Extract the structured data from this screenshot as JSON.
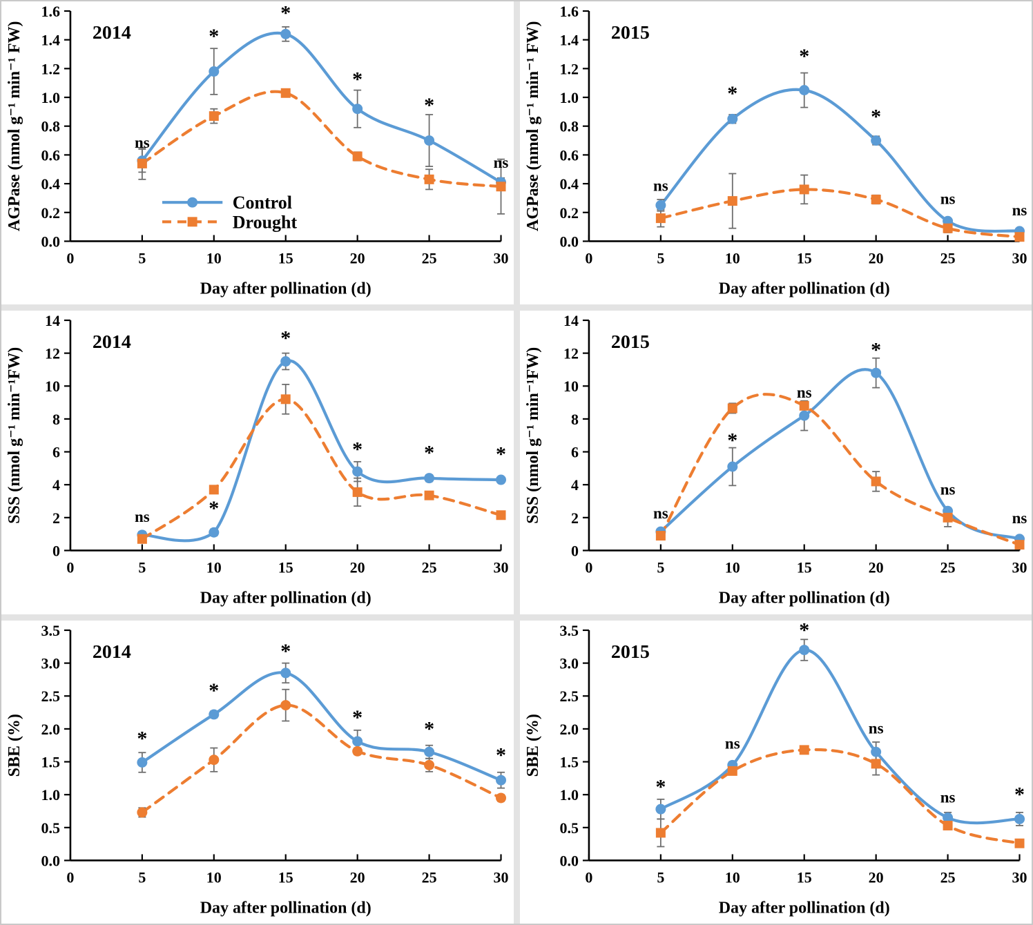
{
  "style": {
    "control_color": "#5B9BD5",
    "drought_color": "#ED7D31",
    "error_bar_color": "#6e6e6e",
    "axis_color": "#000000",
    "panel_background": "#ffffff",
    "gutter_color": "#e3e3e3"
  },
  "legend": {
    "labels": [
      "Control",
      "Drought"
    ]
  },
  "chart_data": [
    {
      "type": "line",
      "year": "2014",
      "ylabel": "AGPase  (nmol g⁻¹ min⁻¹ FW)",
      "xlabel": "Day after pollination (d)",
      "ylim": [
        0,
        1.6
      ],
      "xlim": [
        0,
        30
      ],
      "ytick_values": [
        0,
        0.2,
        0.4,
        0.6,
        0.8,
        1.0,
        1.2,
        1.4,
        1.6
      ],
      "ytick_labels": [
        "0.0",
        "0.2",
        "0.4",
        "0.6",
        "0.8",
        "1.0",
        "1.2",
        "1.4",
        "1.6"
      ],
      "xtick_values": [
        0,
        5,
        10,
        15,
        20,
        25,
        30
      ],
      "xtick_labels": [
        "0",
        "5",
        "10",
        "15",
        "20",
        "25",
        "30"
      ],
      "x": [
        5,
        10,
        15,
        20,
        25,
        30
      ],
      "series": [
        {
          "name": "Control",
          "color": "#5B9BD5",
          "marker": "circle",
          "dash": false,
          "values": [
            0.56,
            1.18,
            1.44,
            0.92,
            0.7,
            0.41
          ],
          "err": [
            0.08,
            0.16,
            0.05,
            0.13,
            0.18,
            0.03
          ]
        },
        {
          "name": "Drought",
          "color": "#ED7D31",
          "marker": "square",
          "dash": true,
          "values": [
            0.54,
            0.87,
            1.03,
            0.59,
            0.43,
            0.38
          ],
          "err": [
            0.11,
            0.05,
            0.02,
            0.03,
            0.07,
            0.19
          ]
        }
      ],
      "sig": [
        {
          "x": 5,
          "y": 0.65,
          "label": "ns"
        },
        {
          "x": 10,
          "y": 1.38,
          "label": "*"
        },
        {
          "x": 15,
          "y": 1.54,
          "label": "*"
        },
        {
          "x": 20,
          "y": 1.08,
          "label": "*"
        },
        {
          "x": 25,
          "y": 0.9,
          "label": "*"
        },
        {
          "x": 30,
          "y": 0.51,
          "label": "ns"
        }
      ],
      "legend": {
        "x1": 6.4,
        "x2": 10.6,
        "label_x": 11.3,
        "row_y": [
          0.27,
          0.135
        ]
      }
    },
    {
      "type": "line",
      "year": "2015",
      "ylabel": "AGPase  (nmol g⁻¹ min⁻¹ FW)",
      "xlabel": "Day after pollination (d)",
      "ylim": [
        0,
        1.6
      ],
      "xlim": [
        0,
        30
      ],
      "ytick_values": [
        0,
        0.2,
        0.4,
        0.6,
        0.8,
        1.0,
        1.2,
        1.4,
        1.6
      ],
      "ytick_labels": [
        "0.0",
        "0.2",
        "0.4",
        "0.6",
        "0.8",
        "1.0",
        "1.2",
        "1.4",
        "1.6"
      ],
      "xtick_values": [
        0,
        5,
        10,
        15,
        20,
        25,
        30
      ],
      "xtick_labels": [
        "0",
        "5",
        "10",
        "15",
        "20",
        "25",
        "30"
      ],
      "x": [
        5,
        10,
        15,
        20,
        25,
        30
      ],
      "series": [
        {
          "name": "Control",
          "color": "#5B9BD5",
          "marker": "circle",
          "dash": false,
          "values": [
            0.25,
            0.85,
            1.05,
            0.7,
            0.14,
            0.07
          ],
          "err": [
            0.04,
            0.03,
            0.12,
            0.03,
            0.02,
            0.02
          ]
        },
        {
          "name": "Drought",
          "color": "#ED7D31",
          "marker": "square",
          "dash": true,
          "values": [
            0.16,
            0.28,
            0.36,
            0.29,
            0.09,
            0.03
          ],
          "err": [
            0.06,
            0.19,
            0.1,
            0.03,
            0.03,
            0.02
          ]
        }
      ],
      "sig": [
        {
          "x": 5,
          "y": 0.35,
          "label": "ns"
        },
        {
          "x": 10,
          "y": 0.98,
          "label": "*"
        },
        {
          "x": 15,
          "y": 1.24,
          "label": "*"
        },
        {
          "x": 20,
          "y": 0.82,
          "label": "*"
        },
        {
          "x": 25,
          "y": 0.26,
          "label": "ns"
        },
        {
          "x": 30,
          "y": 0.18,
          "label": "ns"
        }
      ],
      "legend": null
    },
    {
      "type": "line",
      "year": "2014",
      "ylabel": "SSS  (nmol g⁻¹ min⁻¹FW)",
      "xlabel": "Day after pollination (d)",
      "ylim": [
        0,
        14
      ],
      "xlim": [
        0,
        30
      ],
      "ytick_values": [
        0,
        2,
        4,
        6,
        8,
        10,
        12,
        14
      ],
      "ytick_labels": [
        "0",
        "2",
        "4",
        "6",
        "8",
        "10",
        "12",
        "14"
      ],
      "xtick_values": [
        0,
        5,
        10,
        15,
        20,
        25,
        30
      ],
      "xtick_labels": [
        "0",
        "5",
        "10",
        "15",
        "20",
        "25",
        "30"
      ],
      "x": [
        5,
        10,
        15,
        20,
        25,
        30
      ],
      "series": [
        {
          "name": "Control",
          "color": "#5B9BD5",
          "marker": "circle",
          "dash": false,
          "values": [
            0.95,
            1.1,
            11.5,
            4.8,
            4.4,
            4.3
          ],
          "err": [
            0.2,
            0.2,
            0.5,
            0.6,
            0.2,
            0.15
          ]
        },
        {
          "name": "Drought",
          "color": "#ED7D31",
          "marker": "square",
          "dash": true,
          "values": [
            0.7,
            3.7,
            9.2,
            3.55,
            3.35,
            2.15
          ],
          "err": [
            0.15,
            0.2,
            0.9,
            0.85,
            0.15,
            0.1
          ]
        }
      ],
      "sig": [
        {
          "x": 5,
          "y": 1.75,
          "label": "ns"
        },
        {
          "x": 10,
          "y": 2.15,
          "label": "*"
        },
        {
          "x": 15,
          "y": 12.5,
          "label": "*"
        },
        {
          "x": 20,
          "y": 5.75,
          "label": "*"
        },
        {
          "x": 25,
          "y": 5.55,
          "label": "*"
        },
        {
          "x": 30,
          "y": 5.45,
          "label": "*"
        }
      ],
      "legend": null
    },
    {
      "type": "line",
      "year": "2015",
      "ylabel": "SSS  (nmol g⁻¹ min⁻¹FW)",
      "xlabel": "Day after pollination (d)",
      "ylim": [
        0,
        14
      ],
      "xlim": [
        0,
        30
      ],
      "ytick_values": [
        0,
        2,
        4,
        6,
        8,
        10,
        12,
        14
      ],
      "ytick_labels": [
        "0",
        "2",
        "4",
        "6",
        "8",
        "10",
        "12",
        "14"
      ],
      "xtick_values": [
        0,
        5,
        10,
        15,
        20,
        25,
        30
      ],
      "xtick_labels": [
        "0",
        "5",
        "10",
        "15",
        "20",
        "25",
        "30"
      ],
      "x": [
        5,
        10,
        15,
        20,
        25,
        30
      ],
      "series": [
        {
          "name": "Control",
          "color": "#5B9BD5",
          "marker": "circle",
          "dash": false,
          "values": [
            1.15,
            5.1,
            8.2,
            10.8,
            2.4,
            0.7
          ],
          "err": [
            0.15,
            1.15,
            0.9,
            0.9,
            0.2,
            0.1
          ]
        },
        {
          "name": "Drought",
          "color": "#ED7D31",
          "marker": "square",
          "dash": true,
          "values": [
            0.9,
            8.65,
            8.8,
            4.2,
            2.0,
            0.35
          ],
          "err": [
            0.15,
            0.3,
            0.2,
            0.6,
            0.55,
            0.1
          ]
        }
      ],
      "sig": [
        {
          "x": 5,
          "y": 1.95,
          "label": "ns"
        },
        {
          "x": 10,
          "y": 6.3,
          "label": "*"
        },
        {
          "x": 15,
          "y": 9.3,
          "label": "ns"
        },
        {
          "x": 20,
          "y": 11.8,
          "label": "*"
        },
        {
          "x": 25,
          "y": 3.4,
          "label": "ns"
        },
        {
          "x": 30,
          "y": 1.65,
          "label": "ns"
        }
      ],
      "legend": null
    },
    {
      "type": "line",
      "year": "2014",
      "ylabel": "SBE (%)",
      "xlabel": "Day after pollination (d)",
      "ylim": [
        0,
        3.5
      ],
      "xlim": [
        0,
        30
      ],
      "ytick_values": [
        0,
        0.5,
        1.0,
        1.5,
        2.0,
        2.5,
        3.0,
        3.5
      ],
      "ytick_labels": [
        "0.0",
        "0.5",
        "1.0",
        "1.5",
        "2.0",
        "2.5",
        "3.0",
        "3.5"
      ],
      "xtick_values": [
        0,
        5,
        10,
        15,
        20,
        25,
        30
      ],
      "xtick_labels": [
        "0",
        "5",
        "10",
        "15",
        "20",
        "25",
        "30"
      ],
      "x": [
        5,
        10,
        15,
        20,
        25,
        30
      ],
      "series": [
        {
          "name": "Control",
          "color": "#5B9BD5",
          "marker": "circle",
          "dash": false,
          "values": [
            1.49,
            2.22,
            2.85,
            1.81,
            1.65,
            1.22
          ],
          "err": [
            0.15,
            0.05,
            0.15,
            0.17,
            0.1,
            0.12
          ]
        },
        {
          "name": "Drought",
          "color": "#ED7D31",
          "marker": "circle",
          "dash": true,
          "values": [
            0.73,
            1.53,
            2.36,
            1.66,
            1.45,
            0.95
          ],
          "err": [
            0.07,
            0.18,
            0.24,
            0.05,
            0.1,
            0.05
          ]
        }
      ],
      "sig": [
        {
          "x": 5,
          "y": 1.75,
          "label": "*"
        },
        {
          "x": 10,
          "y": 2.48,
          "label": "*"
        },
        {
          "x": 15,
          "y": 3.08,
          "label": "*"
        },
        {
          "x": 20,
          "y": 2.07,
          "label": "*"
        },
        {
          "x": 25,
          "y": 1.9,
          "label": "*"
        },
        {
          "x": 30,
          "y": 1.5,
          "label": "*"
        }
      ],
      "legend": null
    },
    {
      "type": "line",
      "year": "2015",
      "ylabel": "SBE (%)",
      "xlabel": "Day after pollination (d)",
      "ylim": [
        0,
        3.5
      ],
      "xlim": [
        0,
        30
      ],
      "ytick_values": [
        0,
        0.5,
        1.0,
        1.5,
        2.0,
        2.5,
        3.0,
        3.5
      ],
      "ytick_labels": [
        "0.0",
        "0.5",
        "1.0",
        "1.5",
        "2.0",
        "2.5",
        "3.0",
        "3.5"
      ],
      "xtick_values": [
        0,
        5,
        10,
        15,
        20,
        25,
        30
      ],
      "xtick_labels": [
        "0",
        "5",
        "10",
        "15",
        "20",
        "25",
        "30"
      ],
      "x": [
        5,
        10,
        15,
        20,
        25,
        30
      ],
      "series": [
        {
          "name": "Control",
          "color": "#5B9BD5",
          "marker": "circle",
          "dash": false,
          "values": [
            0.78,
            1.45,
            3.2,
            1.65,
            0.65,
            0.63
          ],
          "err": [
            0.15,
            0.05,
            0.16,
            0.15,
            0.08,
            0.1
          ]
        },
        {
          "name": "Drought",
          "color": "#ED7D31",
          "marker": "square",
          "dash": true,
          "values": [
            0.42,
            1.36,
            1.68,
            1.47,
            0.53,
            0.26
          ],
          "err": [
            0.21,
            0.05,
            0.05,
            0.17,
            0.06,
            0.05
          ]
        }
      ],
      "sig": [
        {
          "x": 5,
          "y": 1.02,
          "label": "*"
        },
        {
          "x": 10,
          "y": 1.7,
          "label": "ns"
        },
        {
          "x": 15,
          "y": 3.4,
          "label": "*"
        },
        {
          "x": 20,
          "y": 1.93,
          "label": "ns"
        },
        {
          "x": 25,
          "y": 0.88,
          "label": "ns"
        },
        {
          "x": 30,
          "y": 0.9,
          "label": "*"
        }
      ],
      "legend": null
    }
  ]
}
